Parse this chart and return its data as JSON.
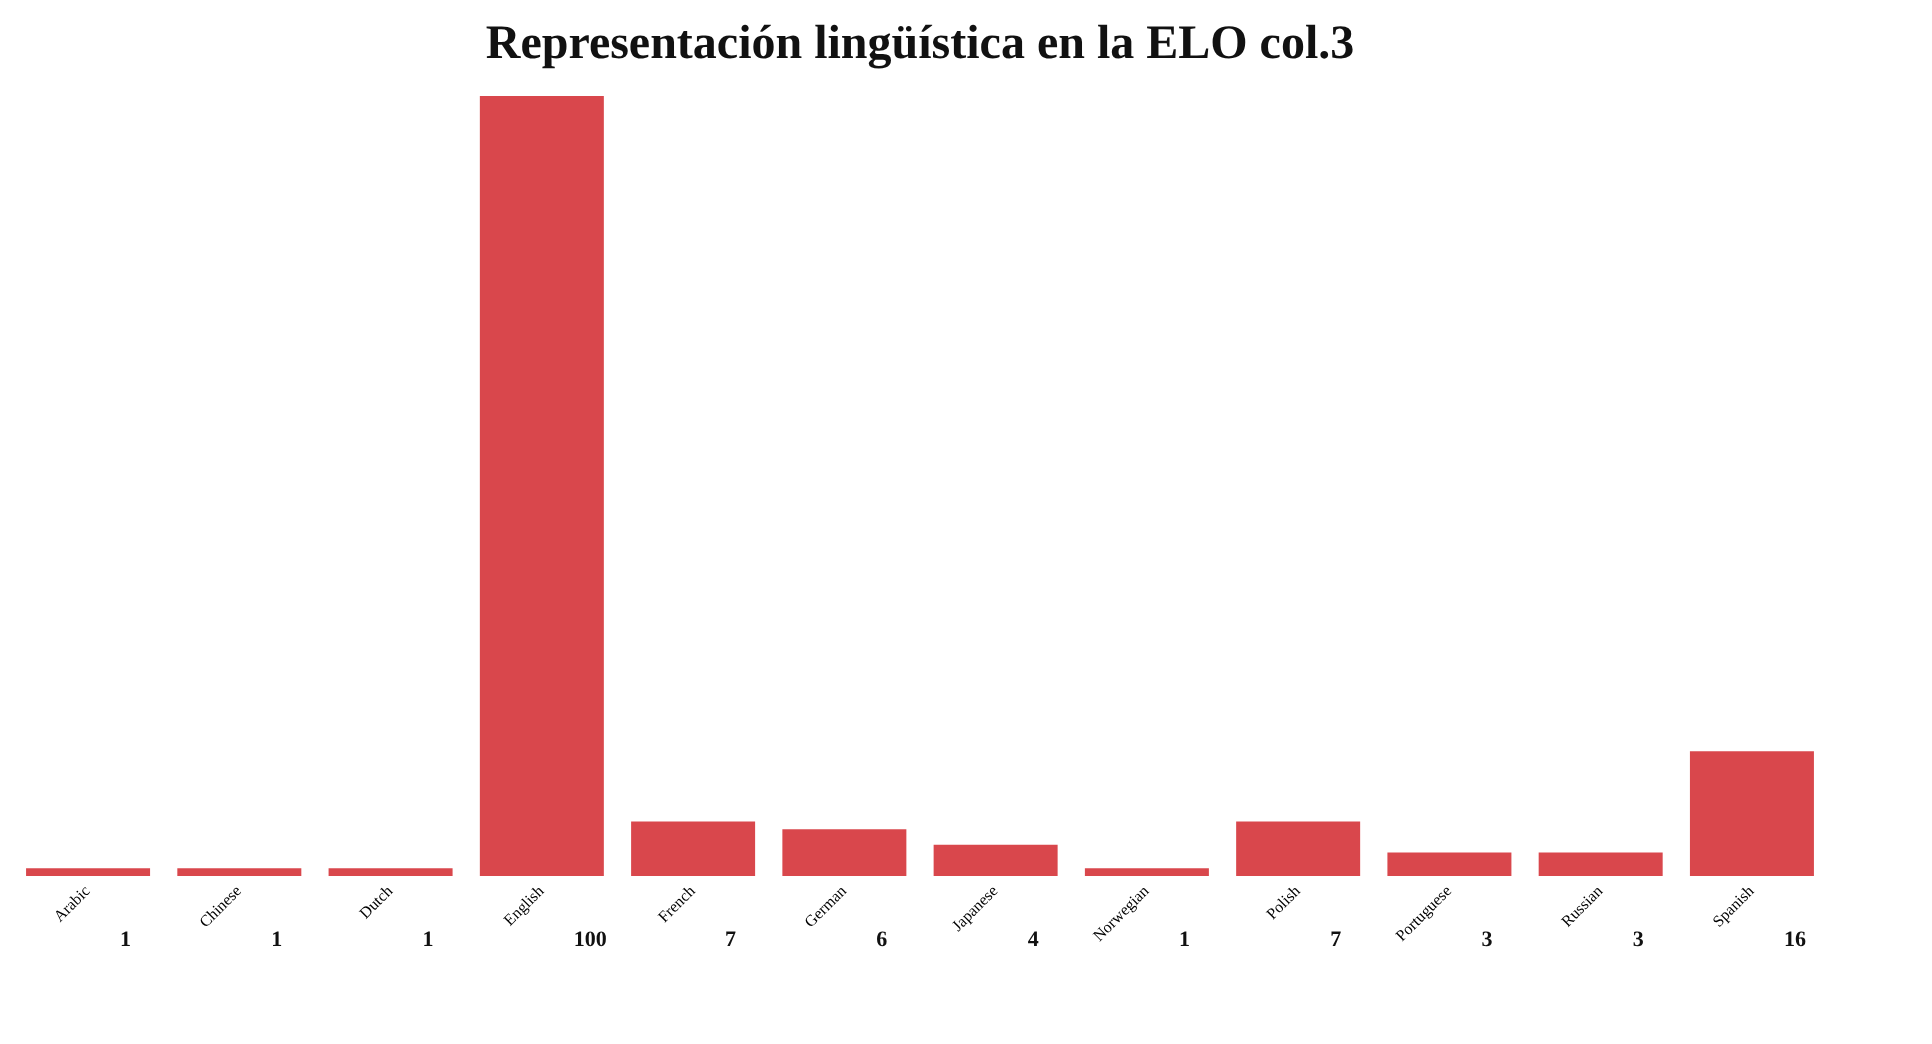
{
  "chart_data": {
    "type": "bar",
    "title": "Representación lingüística en la ELO col.3",
    "categories": [
      "Arabic",
      "Chinese",
      "Dutch",
      "English",
      "French",
      "German",
      "Japanese",
      "Norwegian",
      "Polish",
      "Portuguese",
      "Russian",
      "Spanish"
    ],
    "values": [
      1,
      1,
      1,
      100,
      7,
      6,
      4,
      1,
      7,
      3,
      3,
      16
    ],
    "color": "#d9474c",
    "data_labels": true
  }
}
